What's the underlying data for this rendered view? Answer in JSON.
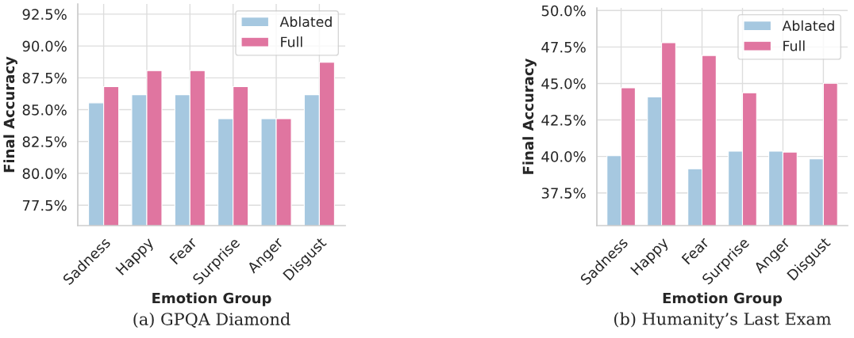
{
  "chart_data": [
    {
      "type": "bar",
      "title": "(a) GPQA Diamond",
      "xlabel": "Emotion Group",
      "ylabel": "Final Accuracy",
      "categories": [
        "Sadness",
        "Happy",
        "Fear",
        "Surprise",
        "Anger",
        "Disgust"
      ],
      "series": [
        {
          "name": "Ablated",
          "color": "#a6c8e0",
          "values": [
            85.54,
            86.18,
            86.18,
            84.29,
            84.29,
            86.18
          ]
        },
        {
          "name": "Full",
          "color": "#e075a0",
          "values": [
            86.81,
            88.07,
            88.07,
            86.81,
            84.29,
            88.72
          ]
        }
      ],
      "ylim": [
        75.9,
        93.3
      ],
      "yticks": [
        {
          "value": 77.5,
          "label": "77.5%"
        },
        {
          "value": 80.0,
          "label": "80.0%"
        },
        {
          "value": 82.5,
          "label": "82.5%"
        },
        {
          "value": 85.0,
          "label": "85.0%"
        },
        {
          "value": 87.5,
          "label": "87.5%"
        },
        {
          "value": 90.0,
          "label": "90.0%"
        },
        {
          "value": 92.5,
          "label": "92.5%"
        }
      ],
      "grid": true,
      "legend": "top right"
    },
    {
      "type": "bar",
      "title": "(b) Humanity’s Last Exam",
      "xlabel": "Emotion Group",
      "ylabel": "Final Accuracy",
      "categories": [
        "Sadness",
        "Happy",
        "Fear",
        "Surprise",
        "Anger",
        "Disgust"
      ],
      "series": [
        {
          "name": "Ablated",
          "color": "#a6c8e0",
          "values": [
            40.05,
            44.08,
            39.15,
            40.36,
            40.36,
            39.83
          ]
        },
        {
          "name": "Full",
          "color": "#e075a0",
          "values": [
            44.7,
            47.79,
            46.92,
            44.36,
            40.3,
            45.01
          ]
        }
      ],
      "ylim": [
        35.26,
        50.18
      ],
      "yticks": [
        {
          "value": 37.5,
          "label": "37.5%"
        },
        {
          "value": 40.0,
          "label": "40.0%"
        },
        {
          "value": 42.5,
          "label": "42.5%"
        },
        {
          "value": 45.0,
          "label": "45.0%"
        },
        {
          "value": 47.5,
          "label": "47.5%"
        },
        {
          "value": 50.0,
          "label": "50.0%"
        }
      ],
      "grid": true,
      "legend": "top right"
    }
  ]
}
